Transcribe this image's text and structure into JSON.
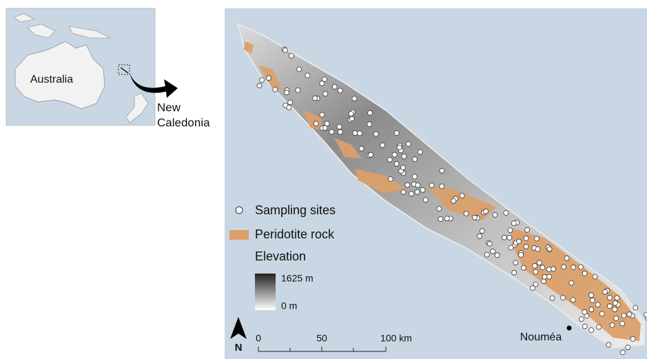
{
  "inset": {
    "australia": "Australia",
    "new_caledonia": [
      "New",
      "Caledonia"
    ]
  },
  "legend": {
    "sampling_sites": "Sampling sites",
    "peridotite": "Peridotite rock",
    "elevation": "Elevation",
    "elevation_max": "1625 m",
    "elevation_min": "0 m"
  },
  "scale_bar": {
    "labels": [
      "0",
      "50",
      "100 km"
    ]
  },
  "north": "N",
  "city": "Nouméa"
}
